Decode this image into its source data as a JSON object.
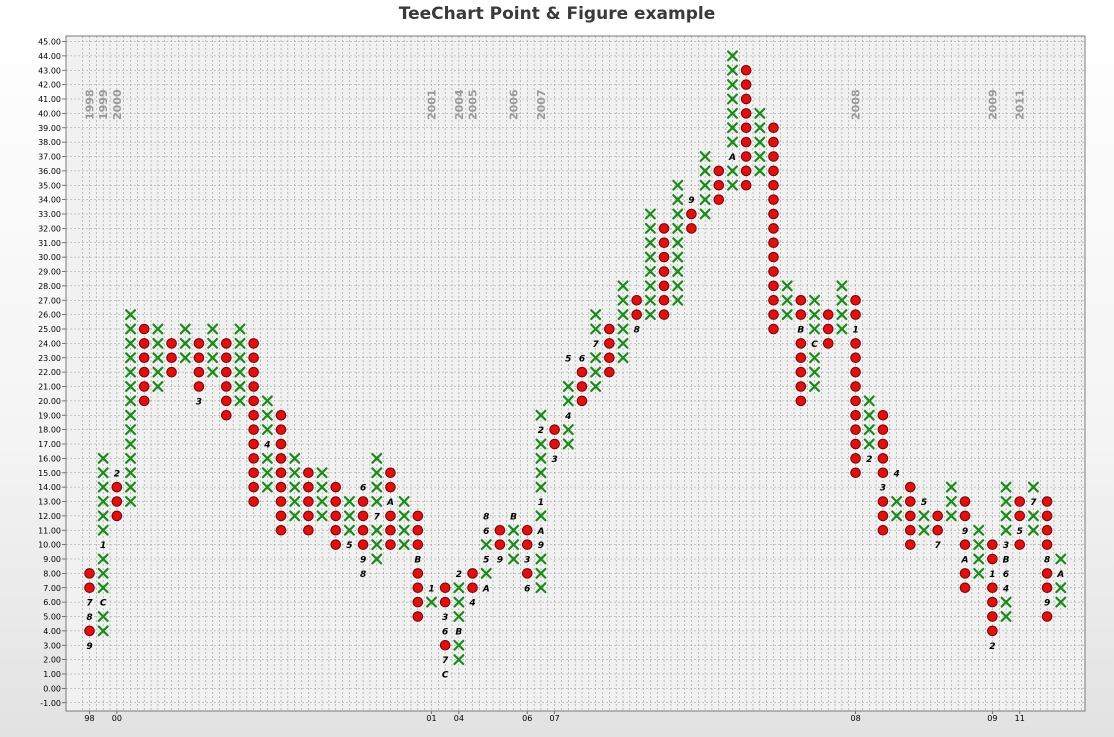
{
  "chart_data": {
    "type": "point-and-figure",
    "title": "TeeChart Point & Figure example",
    "ylim": [
      -1,
      45
    ],
    "y_step": 1,
    "grid": true,
    "x_tick_labels": [
      {
        "col": 0,
        "label": "98"
      },
      {
        "col": 2,
        "label": "00"
      },
      {
        "col": 25,
        "label": "01"
      },
      {
        "col": 27,
        "label": "04"
      },
      {
        "col": 32,
        "label": "06"
      },
      {
        "col": 34,
        "label": "07"
      },
      {
        "col": 56,
        "label": "08"
      },
      {
        "col": 66,
        "label": "09"
      },
      {
        "col": 68,
        "label": "11"
      }
    ],
    "year_labels": [
      {
        "col": 0,
        "label": "1998"
      },
      {
        "col": 1,
        "label": "1999"
      },
      {
        "col": 2,
        "label": "2000"
      },
      {
        "col": 25,
        "label": "2001"
      },
      {
        "col": 27,
        "label": "2004"
      },
      {
        "col": 28,
        "label": "2005"
      },
      {
        "col": 31,
        "label": "2006"
      },
      {
        "col": 33,
        "label": "2007"
      },
      {
        "col": 56,
        "label": "2008"
      },
      {
        "col": 66,
        "label": "2009"
      },
      {
        "col": 68,
        "label": "2011"
      }
    ],
    "columns": [
      {
        "t": "O",
        "from": 4,
        "to": 8
      },
      {
        "t": "X",
        "from": 4,
        "to": 16
      },
      {
        "t": "O",
        "from": 12,
        "to": 15
      },
      {
        "t": "X",
        "from": 13,
        "to": 26
      },
      {
        "t": "O",
        "from": 20,
        "to": 25
      },
      {
        "t": "X",
        "from": 21,
        "to": 25
      },
      {
        "t": "O",
        "from": 22,
        "to": 24
      },
      {
        "t": "X",
        "from": 23,
        "to": 25
      },
      {
        "t": "O",
        "from": 21,
        "to": 24
      },
      {
        "t": "X",
        "from": 22,
        "to": 25
      },
      {
        "t": "O",
        "from": 19,
        "to": 24
      },
      {
        "t": "X",
        "from": 20,
        "to": 25
      },
      {
        "t": "O",
        "from": 13,
        "to": 24
      },
      {
        "t": "X",
        "from": 14,
        "to": 20
      },
      {
        "t": "O",
        "from": 11,
        "to": 19
      },
      {
        "t": "X",
        "from": 12,
        "to": 16
      },
      {
        "t": "O",
        "from": 11,
        "to": 15
      },
      {
        "t": "X",
        "from": 12,
        "to": 15
      },
      {
        "t": "O",
        "from": 10,
        "to": 14
      },
      {
        "t": "X",
        "from": 11,
        "to": 13
      },
      {
        "t": "O",
        "from": 8,
        "to": 13
      },
      {
        "t": "X",
        "from": 9,
        "to": 16
      },
      {
        "t": "O",
        "from": 10,
        "to": 15
      },
      {
        "t": "X",
        "from": 10,
        "to": 13
      },
      {
        "t": "O",
        "from": 5,
        "to": 12
      },
      {
        "t": "X",
        "from": 6,
        "to": 7
      },
      {
        "t": "O",
        "from": 3,
        "to": 7
      },
      {
        "t": "X",
        "from": 2,
        "to": 8
      },
      {
        "t": "O",
        "from": 7,
        "to": 8
      },
      {
        "t": "X",
        "from": 7,
        "to": 10
      },
      {
        "t": "O",
        "from": 9,
        "to": 11
      },
      {
        "t": "X",
        "from": 9,
        "to": 11
      },
      {
        "t": "O",
        "from": 8,
        "to": 11
      },
      {
        "t": "X",
        "from": 7,
        "to": 19
      },
      {
        "t": "O",
        "from": 17,
        "to": 18
      },
      {
        "t": "X",
        "from": 17,
        "to": 21
      },
      {
        "t": "O",
        "from": 20,
        "to": 22
      },
      {
        "t": "X",
        "from": 21,
        "to": 26
      },
      {
        "t": "O",
        "from": 22,
        "to": 25
      },
      {
        "t": "X",
        "from": 23,
        "to": 28
      },
      {
        "t": "O",
        "from": 26,
        "to": 27
      },
      {
        "t": "X",
        "from": 26,
        "to": 33
      },
      {
        "t": "O",
        "from": 26,
        "to": 32
      },
      {
        "t": "X",
        "from": 27,
        "to": 35
      },
      {
        "t": "O",
        "from": 32,
        "to": 34
      },
      {
        "t": "X",
        "from": 33,
        "to": 37
      },
      {
        "t": "O",
        "from": 34,
        "to": 36
      },
      {
        "t": "X",
        "from": 35,
        "to": 44
      },
      {
        "t": "O",
        "from": 35,
        "to": 43
      },
      {
        "t": "X",
        "from": 36,
        "to": 40
      },
      {
        "t": "O",
        "from": 25,
        "to": 39
      },
      {
        "t": "X",
        "from": 26,
        "to": 28
      },
      {
        "t": "O",
        "from": 20,
        "to": 27
      },
      {
        "t": "X",
        "from": 21,
        "to": 27
      },
      {
        "t": "O",
        "from": 24,
        "to": 26
      },
      {
        "t": "X",
        "from": 25,
        "to": 28
      },
      {
        "t": "O",
        "from": 15,
        "to": 27
      },
      {
        "t": "X",
        "from": 16,
        "to": 20
      },
      {
        "t": "O",
        "from": 11,
        "to": 19
      },
      {
        "t": "X",
        "from": 12,
        "to": 13
      },
      {
        "t": "O",
        "from": 10,
        "to": 14
      },
      {
        "t": "X",
        "from": 11,
        "to": 12
      },
      {
        "t": "O",
        "from": 11,
        "to": 12
      },
      {
        "t": "X",
        "from": 12,
        "to": 14
      },
      {
        "t": "O",
        "from": 7,
        "to": 13
      },
      {
        "t": "X",
        "from": 8,
        "to": 11
      },
      {
        "t": "O",
        "from": 4,
        "to": 10
      },
      {
        "t": "X",
        "from": 5,
        "to": 14
      },
      {
        "t": "O",
        "from": 10,
        "to": 13
      },
      {
        "t": "X",
        "from": 11,
        "to": 14
      },
      {
        "t": "O",
        "from": 5,
        "to": 13
      },
      {
        "t": "X",
        "from": 6,
        "to": 9
      }
    ],
    "month_labels": [
      {
        "col": 0,
        "y": 3,
        "label": "9"
      },
      {
        "col": 0,
        "y": 5,
        "label": "8"
      },
      {
        "col": 0,
        "y": 6,
        "label": "7"
      },
      {
        "col": 1,
        "y": 6,
        "label": "C"
      },
      {
        "col": 1,
        "y": 10,
        "label": "1"
      },
      {
        "col": 2,
        "y": 15,
        "label": "2"
      },
      {
        "col": 8,
        "y": 20,
        "label": "3"
      },
      {
        "col": 13,
        "y": 17,
        "label": "4"
      },
      {
        "col": 19,
        "y": 10,
        "label": "5"
      },
      {
        "col": 20,
        "y": 14,
        "label": "6"
      },
      {
        "col": 21,
        "y": 12,
        "label": "7"
      },
      {
        "col": 20,
        "y": 9,
        "label": "9"
      },
      {
        "col": 20,
        "y": 8,
        "label": "8"
      },
      {
        "col": 22,
        "y": 13,
        "label": "A"
      },
      {
        "col": 24,
        "y": 9,
        "label": "B"
      },
      {
        "col": 25,
        "y": 7,
        "label": "1"
      },
      {
        "col": 26,
        "y": 5,
        "label": "3"
      },
      {
        "col": 26,
        "y": 4,
        "label": "6"
      },
      {
        "col": 26,
        "y": 2,
        "label": "7"
      },
      {
        "col": 26,
        "y": 1,
        "label": "C"
      },
      {
        "col": 27,
        "y": 4,
        "label": "B"
      },
      {
        "col": 27,
        "y": 8,
        "label": "2"
      },
      {
        "col": 28,
        "y": 6,
        "label": "4"
      },
      {
        "col": 29,
        "y": 7,
        "label": "A"
      },
      {
        "col": 29,
        "y": 9,
        "label": "5"
      },
      {
        "col": 29,
        "y": 11,
        "label": "6"
      },
      {
        "col": 29,
        "y": 12,
        "label": "8"
      },
      {
        "col": 30,
        "y": 9,
        "label": "9"
      },
      {
        "col": 31,
        "y": 12,
        "label": "B"
      },
      {
        "col": 32,
        "y": 9,
        "label": "3"
      },
      {
        "col": 32,
        "y": 7,
        "label": "6"
      },
      {
        "col": 33,
        "y": 10,
        "label": "9"
      },
      {
        "col": 33,
        "y": 11,
        "label": "A"
      },
      {
        "col": 33,
        "y": 13,
        "label": "1"
      },
      {
        "col": 33,
        "y": 18,
        "label": "2"
      },
      {
        "col": 34,
        "y": 16,
        "label": "3"
      },
      {
        "col": 35,
        "y": 19,
        "label": "4"
      },
      {
        "col": 35,
        "y": 23,
        "label": "5"
      },
      {
        "col": 36,
        "y": 23,
        "label": "6"
      },
      {
        "col": 37,
        "y": 24,
        "label": "7"
      },
      {
        "col": 40,
        "y": 25,
        "label": "8"
      },
      {
        "col": 44,
        "y": 34,
        "label": "9"
      },
      {
        "col": 47,
        "y": 37,
        "label": "A"
      },
      {
        "col": 52,
        "y": 25,
        "label": "B"
      },
      {
        "col": 53,
        "y": 24,
        "label": "C"
      },
      {
        "col": 56,
        "y": 25,
        "label": "1"
      },
      {
        "col": 57,
        "y": 16,
        "label": "2"
      },
      {
        "col": 58,
        "y": 14,
        "label": "3"
      },
      {
        "col": 59,
        "y": 15,
        "label": "4"
      },
      {
        "col": 61,
        "y": 13,
        "label": "5"
      },
      {
        "col": 62,
        "y": 10,
        "label": "7"
      },
      {
        "col": 64,
        "y": 11,
        "label": "9"
      },
      {
        "col": 64,
        "y": 9,
        "label": "A"
      },
      {
        "col": 66,
        "y": 8,
        "label": "1"
      },
      {
        "col": 66,
        "y": 3,
        "label": "2"
      },
      {
        "col": 67,
        "y": 9,
        "label": "B"
      },
      {
        "col": 67,
        "y": 8,
        "label": "6"
      },
      {
        "col": 67,
        "y": 7,
        "label": "4"
      },
      {
        "col": 67,
        "y": 10,
        "label": "3"
      },
      {
        "col": 68,
        "y": 11,
        "label": "5"
      },
      {
        "col": 69,
        "y": 13,
        "label": "7"
      },
      {
        "col": 70,
        "y": 9,
        "label": "8"
      },
      {
        "col": 70,
        "y": 6,
        "label": "9"
      },
      {
        "col": 71,
        "y": 8,
        "label": "A"
      }
    ]
  },
  "colors": {
    "x_mark": "#1a8a1a",
    "o_fill": "#dd1111",
    "o_stroke": "#7a0000",
    "grid": "#9a9a9a",
    "plot_bg": "#f1f1f1"
  }
}
